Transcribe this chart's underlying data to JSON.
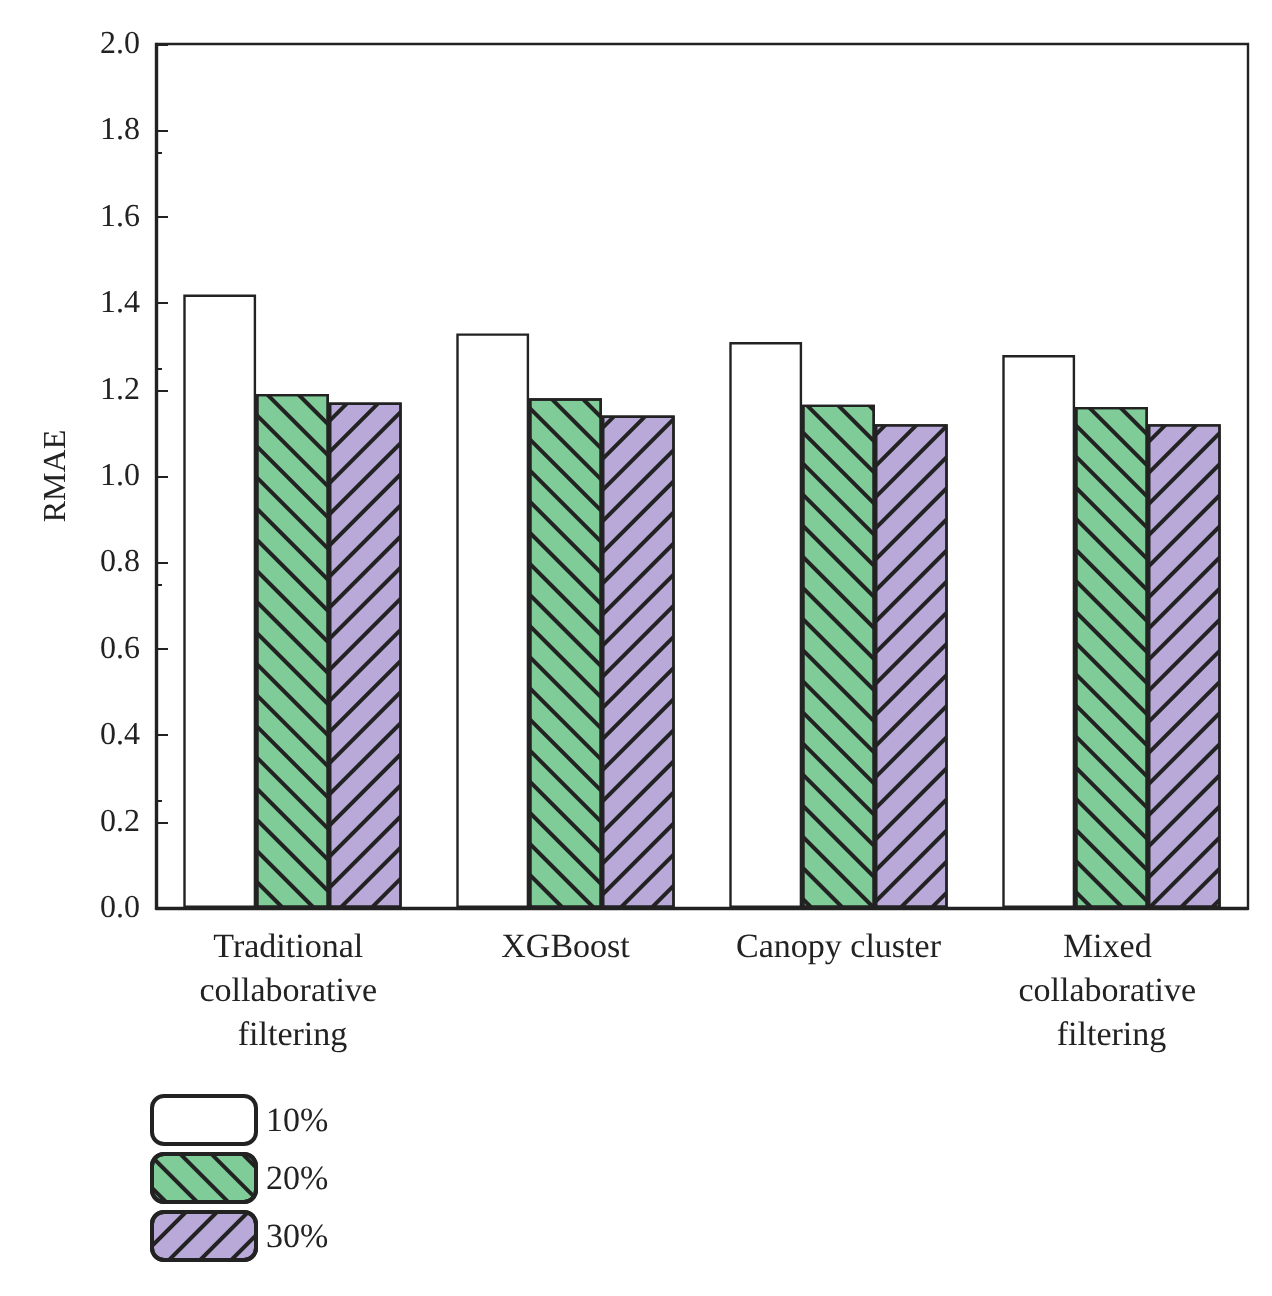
{
  "chart_data": {
    "type": "bar",
    "ylabel": "RMAE",
    "categories": [
      "Traditional collaborative filtering",
      "XGBoost",
      "Canopy cluster",
      "Mixed collaborative filtering"
    ],
    "series": [
      {
        "name": "10%",
        "color": "#ffffff",
        "values": [
          1.42,
          1.33,
          1.31,
          1.28
        ]
      },
      {
        "name": "20%",
        "color": "#7fcc98",
        "values": [
          1.19,
          1.18,
          1.165,
          1.16
        ]
      },
      {
        "name": "30%",
        "color": "#b9a9d9",
        "values": [
          1.17,
          1.14,
          1.12,
          1.12
        ]
      }
    ],
    "ylim": [
      0,
      2
    ],
    "yticks": [
      {
        "value": 0,
        "label": "0.0"
      },
      {
        "value": 0.2,
        "label": "0.2"
      },
      {
        "value": 0.4,
        "label": "0.4"
      },
      {
        "value": 0.6,
        "label": "0.6"
      },
      {
        "value": 0.8,
        "label": "0.8"
      },
      {
        "value": 1,
        "label": "1.0"
      },
      {
        "value": 1.2,
        "label": "1.2"
      },
      {
        "value": 1.4,
        "label": "1.4"
      },
      {
        "value": 1.6,
        "label": "1.6"
      },
      {
        "value": 1.8,
        "label": "1.8"
      },
      {
        "value": 2,
        "label": "2.0"
      }
    ],
    "grid": false,
    "legend": "bottom left"
  }
}
